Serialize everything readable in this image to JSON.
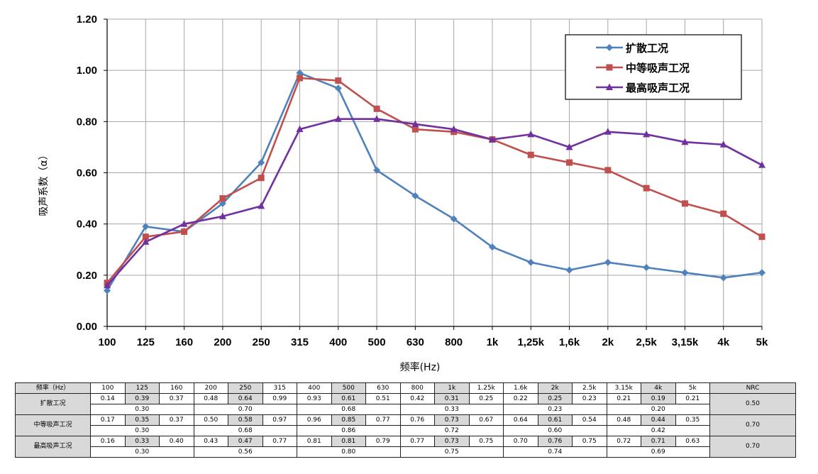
{
  "chart_data": {
    "type": "line",
    "title": "",
    "xlabel": "频率(Hz)",
    "ylabel": "吸声系数（α）",
    "ylim": [
      0,
      1.2
    ],
    "yticks": [
      "0.00",
      "0.20",
      "0.40",
      "0.60",
      "0.80",
      "1.00",
      "1.20"
    ],
    "grid": true,
    "legend_position": "top-right",
    "categories": [
      "100",
      "125",
      "160",
      "200",
      "250",
      "315",
      "400",
      "500",
      "630",
      "800",
      "1k",
      "1,25k",
      "1,6k",
      "2k",
      "2,5k",
      "3,15k",
      "4k",
      "5k"
    ],
    "series": [
      {
        "name": "扩散工况",
        "color": "#4f81bd",
        "marker": "diamond",
        "values": [
          0.14,
          0.39,
          0.37,
          0.48,
          0.64,
          0.99,
          0.93,
          0.61,
          0.51,
          0.42,
          0.31,
          0.25,
          0.22,
          0.25,
          0.23,
          0.21,
          0.19,
          0.21
        ]
      },
      {
        "name": "中等吸声工况",
        "color": "#c0504d",
        "marker": "square",
        "values": [
          0.17,
          0.35,
          0.37,
          0.5,
          0.58,
          0.97,
          0.96,
          0.85,
          0.77,
          0.76,
          0.73,
          0.67,
          0.64,
          0.61,
          0.54,
          0.48,
          0.44,
          0.35
        ]
      },
      {
        "name": "最高吸声工况",
        "color": "#7030a0",
        "marker": "triangle",
        "values": [
          0.16,
          0.33,
          0.4,
          0.43,
          0.47,
          0.77,
          0.81,
          0.81,
          0.79,
          0.77,
          0.73,
          0.75,
          0.7,
          0.76,
          0.75,
          0.72,
          0.71,
          0.63
        ]
      }
    ]
  },
  "table": {
    "header_label": "频率（Hz）",
    "freqs": [
      "100",
      "125",
      "160",
      "200",
      "250",
      "315",
      "400",
      "500",
      "630",
      "800",
      "1k",
      "1.25k",
      "1.6k",
      "2k",
      "2.5k",
      "3.15k",
      "4k",
      "5k"
    ],
    "nrc_label": "NRC",
    "rows": [
      {
        "label": "扩散工况",
        "values": [
          "0.14",
          "0.39",
          "0.37",
          "0.48",
          "0.64",
          "0.99",
          "0.93",
          "0.61",
          "0.51",
          "0.42",
          "0.31",
          "0.25",
          "0.22",
          "0.25",
          "0.23",
          "0.21",
          "0.19",
          "0.21"
        ],
        "octave_values": [
          "0.30",
          "0.70",
          "0.68",
          "0.33",
          "0.23",
          "0.20"
        ],
        "nrc": "0.50"
      },
      {
        "label": "中等吸声工况",
        "values": [
          "0.17",
          "0.35",
          "0.37",
          "0.50",
          "0.58",
          "0.97",
          "0.96",
          "0.85",
          "0.77",
          "0.76",
          "0.73",
          "0.67",
          "0.64",
          "0.61",
          "0.54",
          "0.48",
          "0.44",
          "0.35"
        ],
        "octave_values": [
          "0.30",
          "0.68",
          "0.86",
          "0.72",
          "0.60",
          "0.42"
        ],
        "nrc": "0.70"
      },
      {
        "label": "最高吸声工况",
        "values": [
          "0.16",
          "0.33",
          "0.40",
          "0.43",
          "0.47",
          "0.77",
          "0.81",
          "0.81",
          "0.79",
          "0.77",
          "0.73",
          "0.75",
          "0.70",
          "0.76",
          "0.75",
          "0.72",
          "0.71",
          "0.63"
        ],
        "octave_values": [
          "0.30",
          "0.56",
          "0.80",
          "0.75",
          "0.74",
          "0.69"
        ],
        "nrc": "0.70"
      }
    ]
  }
}
